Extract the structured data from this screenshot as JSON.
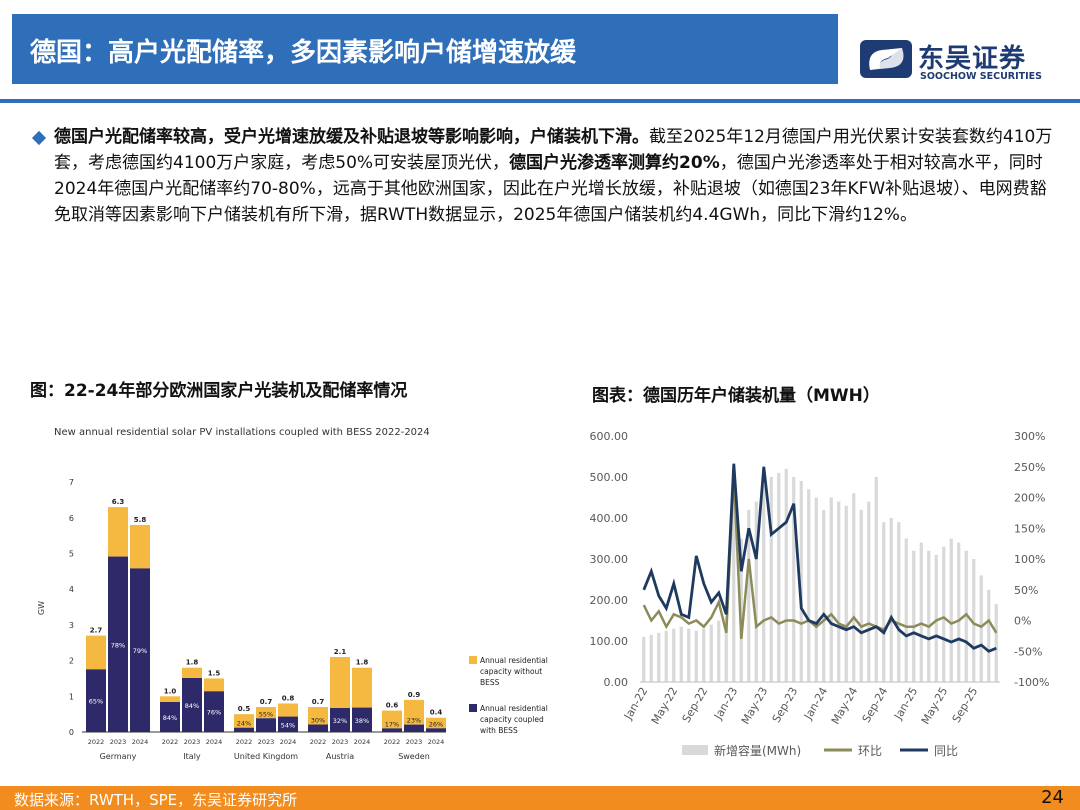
{
  "header": {
    "title": "德国：高户光配储率，多因素影响户储增速放缓"
  },
  "logo": {
    "cn": "东吴证券",
    "en": "SOOCHOW SECURITIES"
  },
  "body": {
    "p1": "德国户光配储率较高，受户光增速放缓及补贴退坡等影响影响，户储装机下滑。",
    "p2": "截至2025年12月德国户用光伏累计安装套数约410万套，考虑德国约4100万户家庭，考虑50%可安装屋顶光伏，",
    "p3": "德国户光渗透率测算约20%",
    "p4": "，德国户光渗透率处于相对较高水平，同时2024年德国户光配储率约70-80%，远高于其他欧洲国家，因此在户光增长放缓，补贴退坡（如德国23年KFW补贴退坡）、电网费豁免取消等因素影响下户储装机有所下滑，据RWTH数据显示，2025年德国户储装机约4.4GWh，同比下滑约12%。"
  },
  "left_caption": "图：22-24年部分欧洲国家户光装机及配储率情况",
  "right_caption": "图表：德国历年户储装机量（MWH）",
  "footer": {
    "source": "数据来源：RWTH，SPE，东吴证券研究所",
    "page": "24"
  },
  "colors": {
    "brand_blue": "#2f6fba",
    "orange": "#f28c1e",
    "bess": "#2e2a6a",
    "no_bess": "#f5b942",
    "bar_gray": "#d9d9d9",
    "hb": "#8c8b5a",
    "tb": "#1f3a5f"
  },
  "chart_data": [
    {
      "type": "bar",
      "title": "New annual residential solar PV installations coupled with BESS 2022-2024",
      "ylabel": "GW",
      "ylim": [
        0,
        7
      ],
      "yticks": [
        "0",
        "1",
        "2",
        "3",
        "4",
        "5",
        "6",
        "7"
      ],
      "groups": [
        {
          "name": "Germany",
          "bars": [
            {
              "year": "2022",
              "total": 2.7,
              "total_label": "2.7",
              "pct": 0.65,
              "pct_label": "65%"
            },
            {
              "year": "2023",
              "total": 6.3,
              "total_label": "6.3",
              "pct": 0.78,
              "pct_label": "78%"
            },
            {
              "year": "2024",
              "total": 5.8,
              "total_label": "5.8",
              "pct": 0.79,
              "pct_label": "79%"
            }
          ]
        },
        {
          "name": "Italy",
          "bars": [
            {
              "year": "2022",
              "total": 1.0,
              "total_label": "1.0",
              "pct": 0.84,
              "pct_label": "84%"
            },
            {
              "year": "2023",
              "total": 1.8,
              "total_label": "1.8",
              "pct": 0.84,
              "pct_label": "84%"
            },
            {
              "year": "2024",
              "total": 1.5,
              "total_label": "1.5",
              "pct": 0.76,
              "pct_label": "76%"
            }
          ]
        },
        {
          "name": "United Kingdom",
          "bars": [
            {
              "year": "2022",
              "total": 0.5,
              "total_label": "0.5",
              "pct": 0.24,
              "pct_label": "24%"
            },
            {
              "year": "2023",
              "total": 0.7,
              "total_label": "0.7",
              "pct": 0.55,
              "pct_label": "55%"
            },
            {
              "year": "2024",
              "total": 0.8,
              "total_label": "0.8",
              "pct": 0.54,
              "pct_label": "54%"
            }
          ]
        },
        {
          "name": "Austria",
          "bars": [
            {
              "year": "2022",
              "total": 0.7,
              "total_label": "0.7",
              "pct": 0.3,
              "pct_label": "30%"
            },
            {
              "year": "2023",
              "total": 2.1,
              "total_label": "2.1",
              "pct": 0.32,
              "pct_label": "32%"
            },
            {
              "year": "2024",
              "total": 1.8,
              "total_label": "1.8",
              "pct": 0.38,
              "pct_label": "38%"
            }
          ]
        },
        {
          "name": "Sweden",
          "bars": [
            {
              "year": "2022",
              "total": 0.6,
              "total_label": "0.6",
              "pct": 0.17,
              "pct_label": "17%"
            },
            {
              "year": "2023",
              "total": 0.9,
              "total_label": "0.9",
              "pct": 0.23,
              "pct_label": "23%"
            },
            {
              "year": "2024",
              "total": 0.4,
              "total_label": "0.4",
              "pct": 0.26,
              "pct_label": "26%"
            }
          ]
        }
      ],
      "legend": [
        "Annual residential capacity without BESS",
        "Annual residential capacity coupled with BESS"
      ]
    },
    {
      "type": "bar+line",
      "y_left": {
        "min": 0,
        "max": 600,
        "ticks": [
          "0.00",
          "100.00",
          "200.00",
          "300.00",
          "400.00",
          "500.00",
          "600.00"
        ]
      },
      "y_right": {
        "min": -100,
        "max": 300,
        "ticks": [
          "-100%",
          "-50%",
          "0%",
          "50%",
          "100%",
          "150%",
          "200%",
          "250%",
          "300%"
        ]
      },
      "x_labels": [
        "Jan-22",
        "May-22",
        "Sep-22",
        "Jan-23",
        "May-23",
        "Sep-23",
        "Jan-24",
        "May-24",
        "Sep-24",
        "Jan-25",
        "May-25",
        "Sep-25"
      ],
      "legend": [
        "新增容量(MWh)",
        "环比",
        "同比"
      ],
      "series": [
        {
          "name": "新增容量(MWh)",
          "values": [
            110,
            115,
            120,
            125,
            130,
            135,
            130,
            125,
            130,
            140,
            150,
            160,
            520,
            350,
            420,
            440,
            480,
            500,
            510,
            520,
            500,
            490,
            470,
            450,
            420,
            450,
            440,
            430,
            460,
            420,
            440,
            500,
            390,
            400,
            390,
            350,
            320,
            340,
            320,
            310,
            330,
            350,
            340,
            320,
            300,
            260,
            225,
            190
          ]
        },
        {
          "name": "环比",
          "values": [
            25,
            0,
            15,
            -10,
            10,
            5,
            -5,
            0,
            -10,
            5,
            30,
            -20,
            240,
            -30,
            100,
            -10,
            0,
            5,
            -5,
            0,
            0,
            -5,
            0,
            -10,
            0,
            10,
            -5,
            -10,
            5,
            -10,
            -5,
            -10,
            -15,
            0,
            -5,
            -10,
            -10,
            -5,
            -10,
            0,
            5,
            -5,
            0,
            10,
            -5,
            -10,
            0,
            -20
          ]
        },
        {
          "name": "同比",
          "values": [
            50,
            80,
            40,
            20,
            60,
            10,
            5,
            105,
            60,
            30,
            45,
            10,
            255,
            80,
            150,
            100,
            250,
            140,
            150,
            160,
            190,
            20,
            0,
            -5,
            10,
            -5,
            -10,
            -15,
            -10,
            -20,
            -15,
            -10,
            -20,
            5,
            -15,
            -25,
            -20,
            -25,
            -30,
            -25,
            -30,
            -35,
            -30,
            -35,
            -45,
            -40,
            -50,
            -45
          ]
        }
      ]
    }
  ]
}
